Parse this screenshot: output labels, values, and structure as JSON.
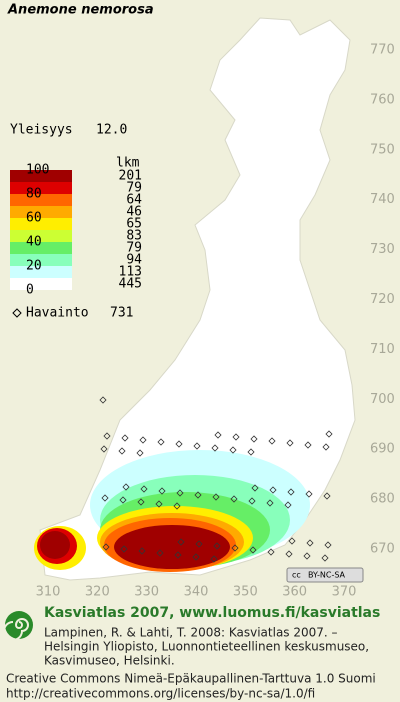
{
  "title": "Anemone nemorosa",
  "frequency": {
    "label": "Yleisyys",
    "value": "12.0"
  },
  "legend": {
    "percent_ticks": [
      100,
      80,
      60,
      40,
      20,
      0
    ],
    "count_header": "lkm",
    "bands": [
      {
        "color": "#a00000",
        "count": 201
      },
      {
        "color": "#dd0000",
        "count": 79
      },
      {
        "color": "#ff6600",
        "count": 64
      },
      {
        "color": "#ffaa00",
        "count": 46
      },
      {
        "color": "#ffee00",
        "count": 65
      },
      {
        "color": "#ccff33",
        "count": 83
      },
      {
        "color": "#66ee66",
        "count": 79
      },
      {
        "color": "#88ffbb",
        "count": 94
      },
      {
        "color": "#ccffff",
        "count": 113
      },
      {
        "color": "#ffffff",
        "count": 445
      }
    ]
  },
  "observations": {
    "label": "Havainto",
    "count": 731
  },
  "axes": {
    "y_ticks": [
      770,
      760,
      750,
      740,
      730,
      720,
      710,
      700,
      690,
      680,
      670
    ],
    "x_ticks": [
      310,
      320,
      330,
      340,
      350,
      360,
      370
    ]
  },
  "license_badge": "BY-NC-SA",
  "footer": {
    "heading": "Kasviatlas 2007, www.luomus.fi/kasviatlas",
    "citation": [
      "Lampinen, R. & Lahti, T. 2008: Kasviatlas 2007. –",
      "Helsingin Yliopisto, Luonnontieteellinen keskusmuseo,",
      "Kasvimuseo, Helsinki."
    ],
    "license": [
      "Creative Commons Nimeä-Epäkaupallinen-Tarttuva 1.0 Suomi",
      "http://creativecommons.org/licenses/by-nc-sa/1.0/fi"
    ]
  }
}
